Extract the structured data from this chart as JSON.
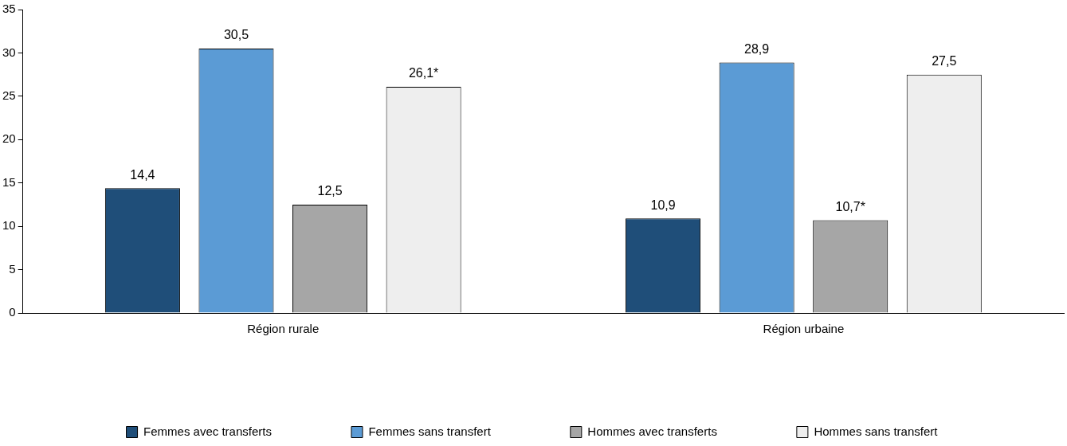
{
  "chart_data": {
    "type": "bar",
    "categories": [
      "Région rurale",
      "Région urbaine"
    ],
    "series": [
      {
        "name": "Femmes avec transferts",
        "color": "#1f4e79",
        "values": [
          14.4,
          10.9
        ],
        "value_labels": [
          "14,4",
          "10,9"
        ]
      },
      {
        "name": "Femmes sans transfert",
        "color": "#5b9bd5",
        "values": [
          30.5,
          28.9
        ],
        "value_labels": [
          "30,5",
          "28,9"
        ]
      },
      {
        "name": "Hommes avec transferts",
        "color": "#a6a6a6",
        "values": [
          12.5,
          10.7
        ],
        "value_labels": [
          "12,5",
          "10,7*"
        ]
      },
      {
        "name": "Hommes sans transfert",
        "color": "#eeeeee",
        "values": [
          26.1,
          27.5
        ],
        "value_labels": [
          "26,1*",
          "27,5"
        ]
      }
    ],
    "ylim": [
      0,
      35
    ],
    "yticks": [
      0,
      5,
      10,
      15,
      20,
      25,
      30,
      35
    ],
    "grid": false,
    "legend": "bottom"
  }
}
